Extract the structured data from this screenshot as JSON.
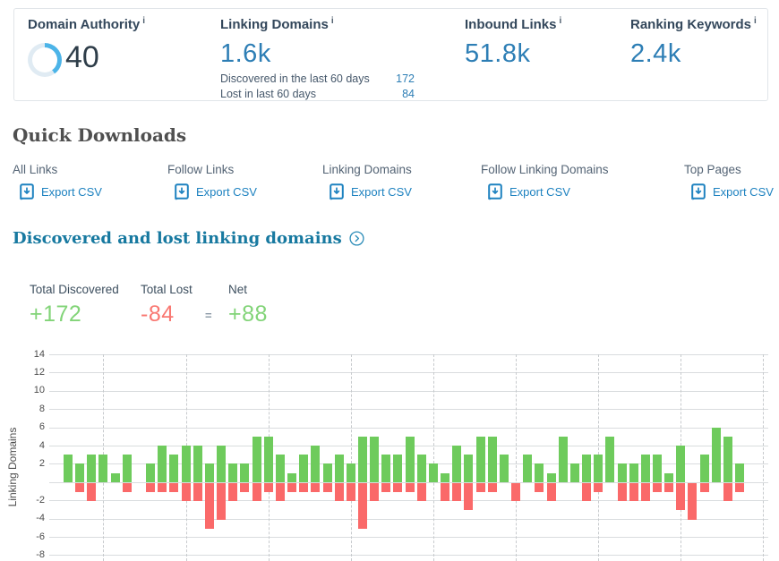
{
  "stats": {
    "info_icon": "i",
    "domain_authority": {
      "label": "Domain Authority",
      "value": "40",
      "gauge_percent": 40
    },
    "linking_domains": {
      "label": "Linking Domains",
      "value": "1.6k",
      "rows": [
        {
          "label": "Discovered in the last 60 days",
          "value": "172"
        },
        {
          "label": "Lost in last 60 days",
          "value": "84"
        }
      ]
    },
    "inbound_links": {
      "label": "Inbound Links",
      "value": "51.8k"
    },
    "ranking_keywords": {
      "label": "Ranking Keywords",
      "value": "2.4k"
    }
  },
  "quick_downloads": {
    "title": "Quick Downloads",
    "export_label": "Export CSV",
    "items": [
      {
        "label": "All Links"
      },
      {
        "label": "Follow Links"
      },
      {
        "label": "Linking Domains"
      },
      {
        "label": "Follow Linking Domains"
      },
      {
        "label": "Top Pages"
      }
    ]
  },
  "section": {
    "title": "Discovered and lost linking domains",
    "equals": "=",
    "totals": [
      {
        "label": "Total Discovered",
        "value": "+172",
        "color": "green"
      },
      {
        "label": "Total Lost",
        "value": "-84",
        "color": "red"
      },
      {
        "label": "Net",
        "value": "+88",
        "color": "green"
      }
    ]
  },
  "chart_data": {
    "type": "bar",
    "title": "Discovered and lost linking domains",
    "ylabel": "Linking Domains",
    "ylim": [
      -8,
      14
    ],
    "yticks": [
      14,
      12,
      10,
      8,
      6,
      4,
      2,
      -2,
      -4,
      -6,
      -8
    ],
    "grid": true,
    "week_separator_every_n_bars": 7,
    "series": [
      {
        "name": "Discovered",
        "color": "#6ecb5c",
        "values": [
          3,
          2,
          3,
          3,
          1,
          3,
          0,
          2,
          4,
          3,
          4,
          4,
          2,
          4,
          2,
          2,
          5,
          5,
          3,
          1,
          3,
          4,
          2,
          3,
          2,
          5,
          5,
          3,
          3,
          5,
          3,
          2,
          1,
          4,
          3,
          5,
          5,
          3,
          0,
          3,
          2,
          1,
          5,
          2,
          3,
          3,
          5,
          2,
          2,
          3,
          3,
          1,
          4,
          0,
          3,
          6,
          5,
          2
        ]
      },
      {
        "name": "Lost",
        "color": "#fa6969",
        "values": [
          0,
          -1,
          -2,
          0,
          0,
          -1,
          0,
          -1,
          -1,
          -1,
          -2,
          -2,
          -5,
          -4,
          -2,
          -1,
          -2,
          -1,
          -2,
          -1,
          -1,
          -1,
          -1,
          -2,
          -2,
          -5,
          -2,
          -1,
          -1,
          -1,
          -2,
          0,
          -2,
          -2,
          -3,
          -1,
          -1,
          0,
          -2,
          0,
          -1,
          -2,
          0,
          0,
          -2,
          -1,
          0,
          -2,
          -2,
          -2,
          -1,
          -1,
          -3,
          -4,
          -1,
          0,
          -2,
          -1
        ]
      }
    ]
  },
  "colors": {
    "metric_blue": "#2d7eb5",
    "link_blue": "#1e82c0",
    "heading_teal": "#1779a0",
    "navy_text": "#33475b",
    "gauge_arc": "#4cb4e8",
    "gauge_track": "#e0ebf3",
    "green": "#6ecb5c",
    "red": "#fa6969",
    "totals_green": "#82d478",
    "totals_red": "#f97872"
  }
}
